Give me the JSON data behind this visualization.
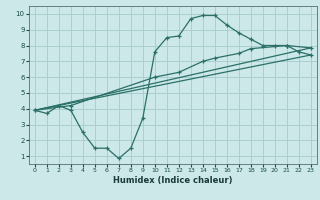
{
  "xlabel": "Humidex (Indice chaleur)",
  "bg_color": "#cce8e8",
  "grid_color": "#aacece",
  "line_color": "#2a7068",
  "xlim": [
    -0.5,
    23.5
  ],
  "ylim": [
    0.5,
    10.5
  ],
  "xticks": [
    0,
    1,
    2,
    3,
    4,
    5,
    6,
    7,
    8,
    9,
    10,
    11,
    12,
    13,
    14,
    15,
    16,
    17,
    18,
    19,
    20,
    21,
    22,
    23
  ],
  "yticks": [
    1,
    2,
    3,
    4,
    5,
    6,
    7,
    8,
    9,
    10
  ],
  "line1_x": [
    0,
    1,
    2,
    3,
    4,
    5,
    6,
    7,
    8,
    9,
    10,
    11,
    12,
    13,
    14,
    15,
    16,
    17,
    18,
    19,
    20,
    21,
    22,
    23
  ],
  "line1_y": [
    3.9,
    3.7,
    4.2,
    3.9,
    2.5,
    1.5,
    1.5,
    0.85,
    1.5,
    3.4,
    7.6,
    8.5,
    8.6,
    9.7,
    9.9,
    9.9,
    9.3,
    8.8,
    8.4,
    8.0,
    8.0,
    8.0,
    7.6,
    7.4
  ],
  "line2_x": [
    0,
    3,
    10,
    12,
    14,
    15,
    17,
    18,
    21,
    23
  ],
  "line2_y": [
    3.9,
    4.2,
    6.0,
    6.3,
    7.0,
    7.2,
    7.5,
    7.8,
    8.0,
    7.85
  ],
  "line3_x": [
    0,
    23
  ],
  "line3_y": [
    3.9,
    7.4
  ],
  "line4_x": [
    0,
    23
  ],
  "line4_y": [
    3.9,
    7.85
  ]
}
